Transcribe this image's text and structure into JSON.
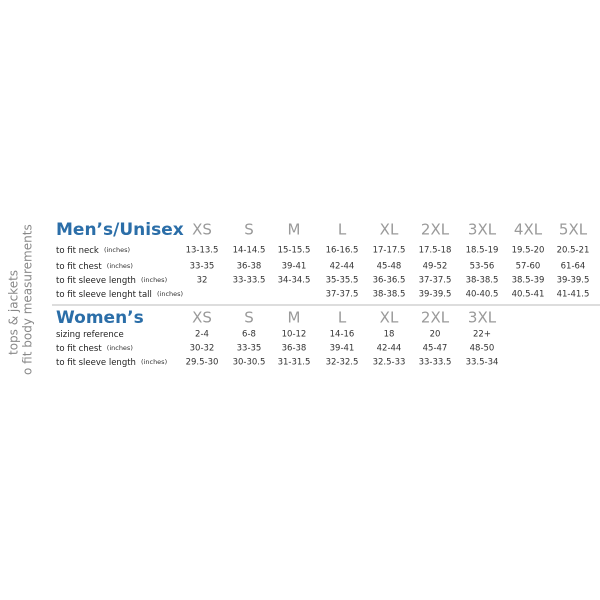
{
  "side": {
    "line1": "tops & jackets",
    "line2": "o fit body measurements"
  },
  "mens": {
    "title": "Men’s/Unisex",
    "sizes": [
      "XS",
      "S",
      "M",
      "L",
      "XL",
      "2XL",
      "3XL",
      "4XL",
      "5XL"
    ],
    "rows": [
      {
        "label": "to fit neck",
        "unit": "(inches)",
        "cells": [
          "13-13.5",
          "14-14.5",
          "15-15.5",
          "16-16.5",
          "17-17.5",
          "17.5-18",
          "18.5-19",
          "19.5-20",
          "20.5-21"
        ]
      },
      {
        "label": "to fit chest",
        "unit": "(inches)",
        "cells": [
          "33-35",
          "36-38",
          "39-41",
          "42-44",
          "45-48",
          "49-52",
          "53-56",
          "57-60",
          "61-64"
        ]
      },
      {
        "label": "to fit sleeve length",
        "unit": "(inches)",
        "cells": [
          "32",
          "33-33.5",
          "34-34.5",
          "35-35.5",
          "36-36.5",
          "37-37.5",
          "38-38.5",
          "38.5-39",
          "39-39.5"
        ]
      },
      {
        "label": "to fit sleeve lenght tall",
        "unit": "(inches)",
        "cells": [
          null,
          null,
          null,
          "37-37.5",
          "38-38.5",
          "39-39.5",
          "40-40.5",
          "40.5-41",
          "41-41.5"
        ]
      }
    ]
  },
  "womens": {
    "title": "Women’s",
    "sizes": [
      "XS",
      "S",
      "M",
      "L",
      "XL",
      "2XL",
      "3XL"
    ],
    "rows": [
      {
        "label": "sizing reference",
        "unit": null,
        "cells": [
          "2-4",
          "6-8",
          "10-12",
          "14-16",
          "18",
          "20",
          "22+"
        ]
      },
      {
        "label": "to fit chest",
        "unit": "(inches)",
        "cells": [
          "30-32",
          "33-35",
          "36-38",
          "39-41",
          "42-44",
          "45-47",
          "48-50"
        ]
      },
      {
        "label": "to fit sleeve length",
        "unit": "(inches)",
        "cells": [
          "29.5-30",
          "30-30.5",
          "31-31.5",
          "32-32.5",
          "32.5-33",
          "33-33.5",
          "33.5-34"
        ]
      }
    ]
  }
}
